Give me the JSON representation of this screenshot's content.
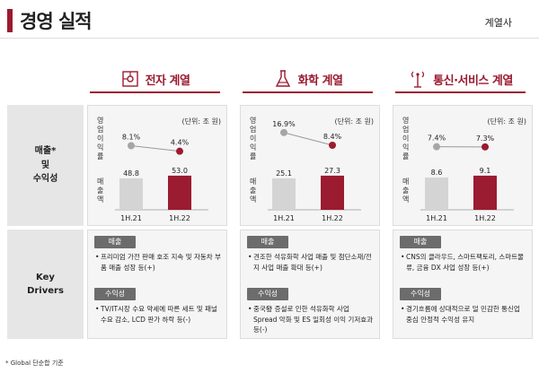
{
  "page_title": "경영 실적",
  "top_right_label": "계열사",
  "row_labels": {
    "sales": "매출*\n및\n수익성",
    "drivers": "Key\nDrivers"
  },
  "footnote": "* Global 단순합 기준",
  "unit_label": "(단위: 조 원)",
  "vertical_labels": {
    "margin": "영업이익률",
    "sales": "매출액"
  },
  "segments": [
    {
      "name": "전자 계열",
      "icon": "electronics-icon",
      "sales_tag": "매출",
      "sales_text": "프리미엄 가전 판매 호조 지속 및 자동차 부품 매출 성장 등(+)",
      "profit_tag": "수익성",
      "profit_text": "TV/IT시장 수요 약세에 따른 세트 및 패널 수요 감소, LCD 판가 하락 등(-)"
    },
    {
      "name": "화학 계열",
      "icon": "flask-icon",
      "sales_tag": "매출",
      "sales_text": "견조한 석유화학 사업 매출 및 첨단소재/전지 사업 매출 확대 등(+)",
      "profit_tag": "수익성",
      "profit_text": "중국發 증설로 인한 석유화학 사업 Spread 악화 및 ES 일회성 이익 기저효과 등(-)"
    },
    {
      "name": "통신·서비스 계열",
      "icon": "antenna-icon",
      "sales_tag": "매출",
      "sales_text": "CNS의 클라우드, 스마트팩토리, 스마트물류, 금융 DX 사업 성장 등(+)",
      "profit_tag": "수익성",
      "profit_text": "경기흐름에 상대적으로 덜 민감한 통신업 중심 안정적 수익성 유지"
    }
  ],
  "chart_data": [
    {
      "type": "bar",
      "segment": "전자 계열",
      "categories": [
        "1H.21",
        "1H.22"
      ],
      "series": [
        {
          "name": "매출액",
          "values": [
            48.8,
            53.0
          ],
          "labels": [
            "48.8",
            "53.0"
          ]
        },
        {
          "name": "영업이익률",
          "type": "line",
          "values": [
            8.1,
            4.4
          ],
          "labels": [
            "8.1%",
            "4.4%"
          ]
        }
      ],
      "colors": [
        "#d4d4d4",
        "#9b1b30"
      ]
    },
    {
      "type": "bar",
      "segment": "화학 계열",
      "categories": [
        "1H.21",
        "1H.22"
      ],
      "series": [
        {
          "name": "매출액",
          "values": [
            25.1,
            27.3
          ],
          "labels": [
            "25.1",
            "27.3"
          ]
        },
        {
          "name": "영업이익률",
          "type": "line",
          "values": [
            16.9,
            8.4
          ],
          "labels": [
            "16.9%",
            "8.4%"
          ]
        }
      ],
      "colors": [
        "#d4d4d4",
        "#9b1b30"
      ]
    },
    {
      "type": "bar",
      "segment": "통신·서비스 계열",
      "categories": [
        "1H.21",
        "1H.22"
      ],
      "series": [
        {
          "name": "매출액",
          "values": [
            8.6,
            9.1
          ],
          "labels": [
            "8.6",
            "9.1"
          ]
        },
        {
          "name": "영업이익률",
          "type": "line",
          "values": [
            7.4,
            7.3
          ],
          "labels": [
            "7.4%",
            "7.3%"
          ]
        }
      ],
      "colors": [
        "#d4d4d4",
        "#9b1b30"
      ]
    }
  ]
}
